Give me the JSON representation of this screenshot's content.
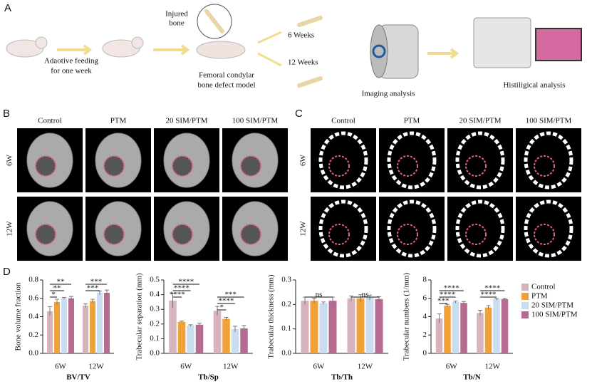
{
  "panel_labels": [
    "A",
    "B",
    "C",
    "D"
  ],
  "workflow": {
    "feeding": [
      "Adaotive feeding",
      "for one week"
    ],
    "injured": [
      "Injured",
      "bone"
    ],
    "model": [
      "Femoral condylar",
      "bone defect model"
    ],
    "weeks": [
      "6 Weeks",
      "12 Weeks"
    ],
    "imaging": "Imaging analysis",
    "histology": "Histiligical analysis"
  },
  "image_grid": {
    "columns": [
      "Control",
      "PTM",
      "20 SIM/PTM",
      "100 SIM/PTM"
    ],
    "rows": [
      "6W",
      "12W"
    ]
  },
  "chart_data": [
    {
      "type": "bar",
      "x_label": "BV/TV",
      "y_label": "Bone volume fraction",
      "categories": [
        "6W",
        "12W"
      ],
      "ylim": [
        0,
        0.8
      ],
      "yticks": [
        {
          "value": 0,
          "label": "0.0"
        },
        0.2,
        0.4,
        0.6,
        0.8
      ],
      "series": [
        {
          "name": "Control",
          "color": "#d9b3bb",
          "values": [
            0.46,
            0.52
          ],
          "errors": [
            0.05,
            0.02
          ]
        },
        {
          "name": "PTM",
          "color": "#f0a137",
          "values": [
            0.56,
            0.57
          ],
          "errors": [
            0.03,
            0.02
          ]
        },
        {
          "name": "20 SIM/PTM",
          "color": "#c9dcf0",
          "values": [
            0.6,
            0.66
          ],
          "errors": [
            0.01,
            0.02
          ]
        },
        {
          "name": "100 SIM/PTM",
          "color": "#b56c90",
          "values": [
            0.6,
            0.66
          ],
          "errors": [
            0.02,
            0.03
          ]
        }
      ],
      "annotations": [
        "**",
        "**",
        "*",
        "***",
        "***"
      ]
    },
    {
      "type": "bar",
      "x_label": "Tb/Sp",
      "y_label": "Trabecular separation (mm)",
      "categories": [
        "6W",
        "12W"
      ],
      "ylim": [
        0,
        0.5
      ],
      "yticks": [
        {
          "value": 0,
          "label": "0.0"
        },
        0.1,
        0.2,
        0.3,
        0.4,
        0.5
      ],
      "series": [
        {
          "name": "Control",
          "color": "#d9b3bb",
          "values": [
            0.36,
            0.29
          ],
          "errors": [
            0.05,
            0.03
          ]
        },
        {
          "name": "PTM",
          "color": "#f0a137",
          "values": [
            0.215,
            0.235
          ],
          "errors": [
            0.005,
            0.01
          ]
        },
        {
          "name": "20 SIM/PTM",
          "color": "#c9dcf0",
          "values": [
            0.19,
            0.165
          ],
          "errors": [
            0.005,
            0.02
          ]
        },
        {
          "name": "100 SIM/PTM",
          "color": "#b56c90",
          "values": [
            0.195,
            0.17
          ],
          "errors": [
            0.01,
            0.02
          ]
        }
      ],
      "annotations": [
        "****",
        "****",
        "****",
        "***",
        "****",
        "*"
      ]
    },
    {
      "type": "bar",
      "x_label": "Tb/Th",
      "y_label": "Trabecular thickness (mm)",
      "categories": [
        "6W",
        "12W"
      ],
      "ylim": [
        0,
        0.3
      ],
      "yticks": [
        {
          "value": 0,
          "label": "0.0"
        },
        0.1,
        0.2,
        0.3
      ],
      "series": [
        {
          "name": "Control",
          "color": "#d9b3bb",
          "values": [
            0.215,
            0.225
          ],
          "errors": [
            0.015,
            0.01
          ]
        },
        {
          "name": "PTM",
          "color": "#f0a137",
          "values": [
            0.215,
            0.225
          ],
          "errors": [
            0.01,
            0.015
          ]
        },
        {
          "name": "20 SIM/PTM",
          "color": "#c9dcf0",
          "values": [
            0.205,
            0.228
          ],
          "errors": [
            0.005,
            0.01
          ]
        },
        {
          "name": "100 SIM/PTM",
          "color": "#b56c90",
          "values": [
            0.215,
            0.222
          ],
          "errors": [
            0.015,
            0.01
          ]
        }
      ],
      "annotations": [
        "ns",
        "ns"
      ]
    },
    {
      "type": "bar",
      "x_label": "Tb/N",
      "y_label": "Trabecular numbers (1/mm)",
      "categories": [
        "6W",
        "12W"
      ],
      "ylim": [
        0,
        8
      ],
      "yticks": [
        0,
        2,
        4,
        6,
        8
      ],
      "series": [
        {
          "name": "Control",
          "color": "#d9b3bb",
          "values": [
            3.8,
            4.4
          ],
          "errors": [
            0.5,
            0.3
          ]
        },
        {
          "name": "PTM",
          "color": "#f0a137",
          "values": [
            5.2,
            5.0
          ],
          "errors": [
            0.15,
            0.2
          ]
        },
        {
          "name": "20 SIM/PTM",
          "color": "#c9dcf0",
          "values": [
            5.6,
            5.9
          ],
          "errors": [
            0.1,
            0.1
          ]
        },
        {
          "name": "100 SIM/PTM",
          "color": "#b56c90",
          "values": [
            5.5,
            5.9
          ],
          "errors": [
            0.15,
            0.1
          ]
        }
      ],
      "annotations": [
        "****",
        "****",
        "***",
        "****",
        "****"
      ]
    }
  ]
}
